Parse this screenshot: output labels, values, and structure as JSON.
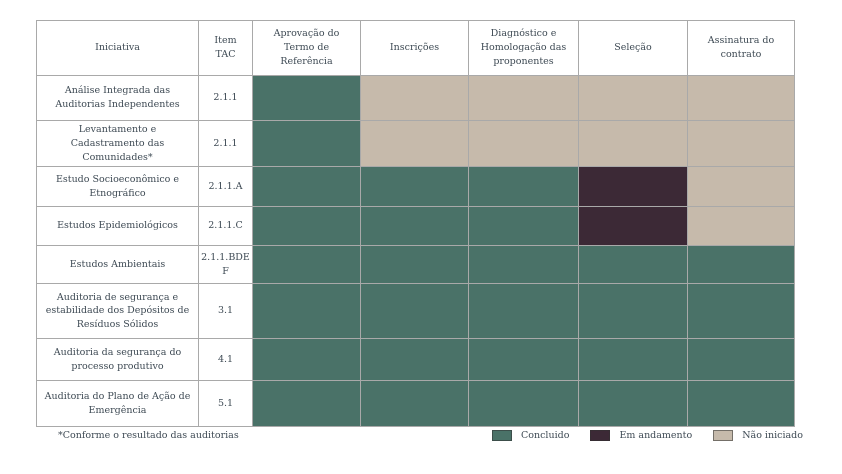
{
  "status_colors": {
    "concluido": "#4a7268",
    "em_andamento": "#3c2936",
    "nao_iniciado": "#c6baab"
  },
  "chart_data": {
    "type": "table",
    "columns": [
      "Iniciativa",
      "Item TAC",
      "Aprovação do Termo de Referência",
      "Inscrições",
      "Diagnóstico e Homologação das proponentes",
      "Seleção",
      "Assinatura do contrato"
    ],
    "rows": [
      {
        "iniciativa": "Análise Integrada das Auditorias Independentes",
        "item_tac": "2.1.1",
        "statuses": [
          "concluido",
          "nao_iniciado",
          "nao_iniciado",
          "nao_iniciado",
          "nao_iniciado"
        ]
      },
      {
        "iniciativa": "Levantamento e Cadastramento das Comunidades*",
        "item_tac": "2.1.1",
        "statuses": [
          "concluido",
          "nao_iniciado",
          "nao_iniciado",
          "nao_iniciado",
          "nao_iniciado"
        ]
      },
      {
        "iniciativa": "Estudo Socioeconômico e Etnográfico",
        "item_tac": "2.1.1.A",
        "statuses": [
          "concluido",
          "concluido",
          "concluido",
          "em_andamento",
          "nao_iniciado"
        ]
      },
      {
        "iniciativa": "Estudos Epidemiológicos",
        "item_tac": "2.1.1.C",
        "statuses": [
          "concluido",
          "concluido",
          "concluido",
          "em_andamento",
          "nao_iniciado"
        ]
      },
      {
        "iniciativa": "Estudos Ambientais",
        "item_tac": "2.1.1.BDE F",
        "statuses": [
          "concluido",
          "concluido",
          "concluido",
          "concluido",
          "concluido"
        ]
      },
      {
        "iniciativa": "Auditoria de segurança e estabilidade dos Depósitos de Resíduos Sólidos",
        "item_tac": "3.1",
        "statuses": [
          "concluido",
          "concluido",
          "concluido",
          "concluido",
          "concluido"
        ]
      },
      {
        "iniciativa": "Auditoria da segurança do processo produtivo",
        "item_tac": "4.1",
        "statuses": [
          "concluido",
          "concluido",
          "concluido",
          "concluido",
          "concluido"
        ]
      },
      {
        "iniciativa": "Auditoria do Plano de Ação de Emergência",
        "item_tac": "5.1",
        "statuses": [
          "concluido",
          "concluido",
          "concluido",
          "concluido",
          "concluido"
        ]
      }
    ],
    "legend": [
      {
        "label": "Concluido",
        "status": "concluido"
      },
      {
        "label": "Em andamento",
        "status": "em_andamento"
      },
      {
        "label": "Não iniciado",
        "status": "nao_iniciado"
      }
    ],
    "footnote": "*Conforme o resultado das auditorias"
  }
}
